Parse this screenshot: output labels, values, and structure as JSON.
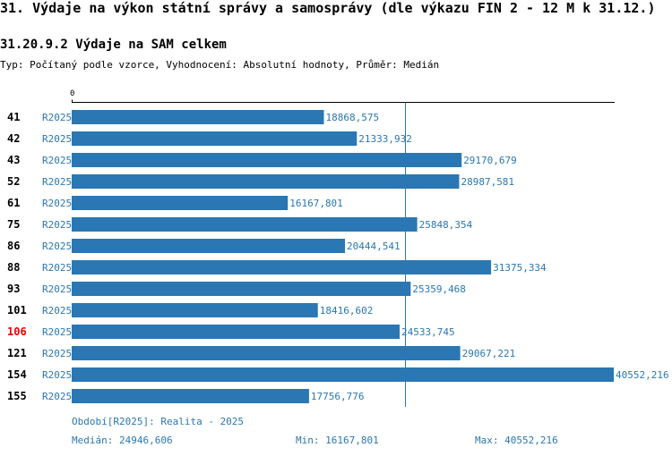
{
  "page": {
    "title": "31. Výdaje na výkon státní správy a samosprávy (dle výkazu FIN 2 - 12 M k 31.12.)",
    "subtitle": "31.20.9.2 Výdaje na SAM celkem",
    "meta": "Typ: Počítaný podle vzorce, Vyhodnocení: Absolutní hodnoty, Průměr: Medián"
  },
  "colors": {
    "bar": "#2a77b3",
    "label": "#2a77b3",
    "highlight": "#ee0000",
    "axis": "#000000"
  },
  "chart_data": {
    "type": "bar",
    "orientation": "horizontal",
    "title": "31.20.9.2 Výdaje na SAM celkem",
    "axis_zero_label": "0",
    "xlim": [
      0,
      40552.216
    ],
    "median": 24946.606,
    "highlight_category": "106",
    "categories": [
      "41",
      "42",
      "43",
      "52",
      "61",
      "75",
      "86",
      "88",
      "93",
      "101",
      "106",
      "121",
      "154",
      "155"
    ],
    "series": [
      {
        "name": "R2025",
        "values": [
          18868.575,
          21333.932,
          29170.679,
          28987.581,
          16167.801,
          25848.354,
          20444.541,
          31375.334,
          25359.468,
          18416.602,
          24533.745,
          29067.221,
          40552.216,
          17756.776
        ],
        "labels": [
          "18868,575",
          "21333,932",
          "29170,679",
          "28987,581",
          "16167,801",
          "25848,354",
          "20444,541",
          "31375,334",
          "25359,468",
          "18416,602",
          "24533,745",
          "29067,221",
          "40552,216",
          "17756,776"
        ]
      }
    ]
  },
  "footer": {
    "period": "Období[R2025]: Realita - 2025",
    "median": "Medián: 24946,606",
    "min": "Min: 16167,801",
    "max": "Max: 40552,216"
  }
}
